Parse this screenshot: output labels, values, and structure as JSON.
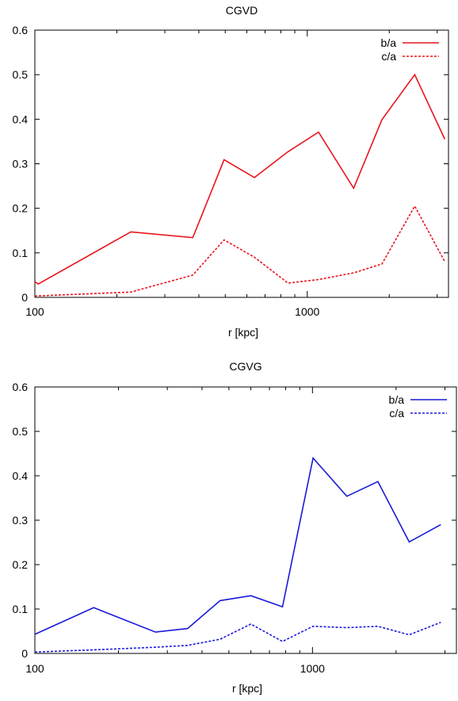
{
  "chart_data": [
    {
      "type": "line",
      "title": "CGVD",
      "xlabel": "r [kpc]",
      "ylabel": "",
      "xscale": "log",
      "xlim": [
        100,
        3300
      ],
      "ylim": [
        0,
        0.6
      ],
      "xticks": [
        100,
        1000
      ],
      "xtick_labels": [
        "100",
        "1000"
      ],
      "yticks": [
        0,
        0.1,
        0.2,
        0.3,
        0.4,
        0.5,
        0.6
      ],
      "ytick_labels": [
        "0",
        "0.1",
        "0.2",
        "0.3",
        "0.4",
        "0.5",
        "0.6"
      ],
      "legend_position": "top-right",
      "grid": false,
      "series": [
        {
          "name": "b/a",
          "style": "solid",
          "color": "#e8141c",
          "points": [
            [
              100,
              0.035
            ],
            [
              103,
              0.03
            ],
            [
              225,
              0.147
            ],
            [
              380,
              0.134
            ],
            [
              495,
              0.309
            ],
            [
              640,
              0.269
            ],
            [
              850,
              0.327
            ],
            [
              1100,
              0.371
            ],
            [
              1480,
              0.245
            ],
            [
              1880,
              0.399
            ],
            [
              2480,
              0.5
            ],
            [
              3200,
              0.355
            ]
          ]
        },
        {
          "name": "c/a",
          "style": "dashed",
          "color": "#e8141c",
          "points": [
            [
              100,
              0.003
            ],
            [
              225,
              0.012
            ],
            [
              380,
              0.05
            ],
            [
              495,
              0.129
            ],
            [
              640,
              0.09
            ],
            [
              850,
              0.032
            ],
            [
              1100,
              0.04
            ],
            [
              1480,
              0.055
            ],
            [
              1880,
              0.075
            ],
            [
              2480,
              0.205
            ],
            [
              3200,
              0.08
            ]
          ]
        }
      ]
    },
    {
      "type": "line",
      "title": "CGVG",
      "xlabel": "r [kpc]",
      "ylabel": "",
      "xscale": "log",
      "xlim": [
        100,
        3300
      ],
      "ylim": [
        0,
        0.6
      ],
      "xticks": [
        100,
        1000
      ],
      "xtick_labels": [
        "100",
        "1000"
      ],
      "yticks": [
        0,
        0.1,
        0.2,
        0.3,
        0.4,
        0.5,
        0.6
      ],
      "ytick_labels": [
        "0",
        "0.1",
        "0.2",
        "0.3",
        "0.4",
        "0.5",
        "0.6"
      ],
      "legend_position": "top-right",
      "grid": false,
      "series": [
        {
          "name": "b/a",
          "style": "solid",
          "color": "#1a1ad8",
          "points": [
            [
              100,
              0.043
            ],
            [
              163,
              0.103
            ],
            [
              272,
              0.048
            ],
            [
              355,
              0.056
            ],
            [
              465,
              0.119
            ],
            [
              600,
              0.13
            ],
            [
              780,
              0.105
            ],
            [
              1005,
              0.44
            ],
            [
              1330,
              0.354
            ],
            [
              1720,
              0.387
            ],
            [
              2230,
              0.251
            ],
            [
              2900,
              0.29
            ]
          ]
        },
        {
          "name": "c/a",
          "style": "dashed",
          "color": "#1a1ad8",
          "points": [
            [
              100,
              0.003
            ],
            [
              163,
              0.008
            ],
            [
              272,
              0.014
            ],
            [
              355,
              0.018
            ],
            [
              465,
              0.032
            ],
            [
              600,
              0.066
            ],
            [
              780,
              0.027
            ],
            [
              1005,
              0.061
            ],
            [
              1330,
              0.058
            ],
            [
              1720,
              0.061
            ],
            [
              2230,
              0.042
            ],
            [
              2900,
              0.07
            ]
          ]
        }
      ]
    }
  ]
}
